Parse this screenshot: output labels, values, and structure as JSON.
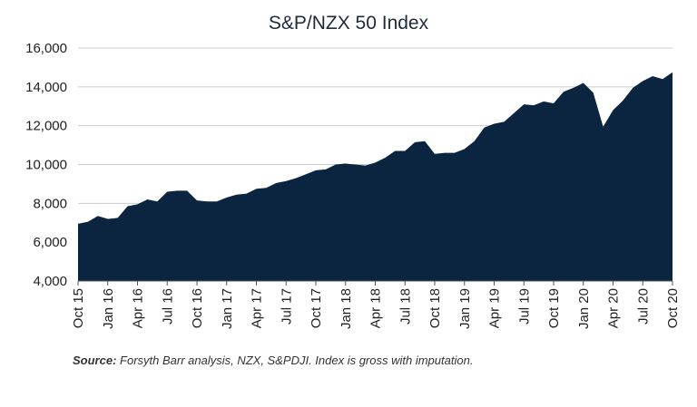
{
  "chart_data": {
    "type": "area",
    "title": "S&P/NZX 50 Index",
    "xlabel": "",
    "ylabel": "",
    "ylim": [
      4000,
      16000
    ],
    "y_ticks": [
      "4,000",
      "6,000",
      "8,000",
      "10,000",
      "12,000",
      "14,000",
      "16,000"
    ],
    "y_tick_values": [
      4000,
      6000,
      8000,
      10000,
      12000,
      14000,
      16000
    ],
    "x_tick_labels": [
      "Oct 15",
      "Jan 16",
      "Apr 16",
      "Jul 16",
      "Oct 16",
      "Jan 17",
      "Apr 17",
      "Jul 17",
      "Oct 17",
      "Jan 18",
      "Apr 18",
      "Jul 18",
      "Oct 18",
      "Jan 19",
      "Apr 19",
      "Jul 19",
      "Oct 19",
      "Jan 20",
      "Apr 20",
      "Jul 20",
      "Oct 20"
    ],
    "grid": true,
    "fill_color": "#0b2540",
    "grid_color": "#cccccc",
    "series": [
      {
        "values": [
          6950,
          7050,
          7350,
          7200,
          7250,
          7850,
          7950,
          8200,
          8100,
          8600,
          8650,
          8650,
          8150,
          8100,
          8100,
          8300,
          8450,
          8500,
          8750,
          8800,
          9050,
          9150,
          9300,
          9500,
          9700,
          9750,
          10000,
          10050,
          10000,
          9950,
          10100,
          10350,
          10700,
          10700,
          11150,
          11200,
          10550,
          10600,
          10600,
          10800,
          11200,
          11900,
          12100,
          12200,
          12650,
          13100,
          13050,
          13250,
          13150,
          13750,
          13950,
          14200,
          13700,
          11950,
          12800,
          13300,
          13950,
          14300,
          14550,
          14400,
          14750
        ]
      }
    ]
  },
  "source": {
    "label": "Source:",
    "text": " Forsyth Barr analysis, NZX, S&PDJI. Index is gross with imputation."
  }
}
